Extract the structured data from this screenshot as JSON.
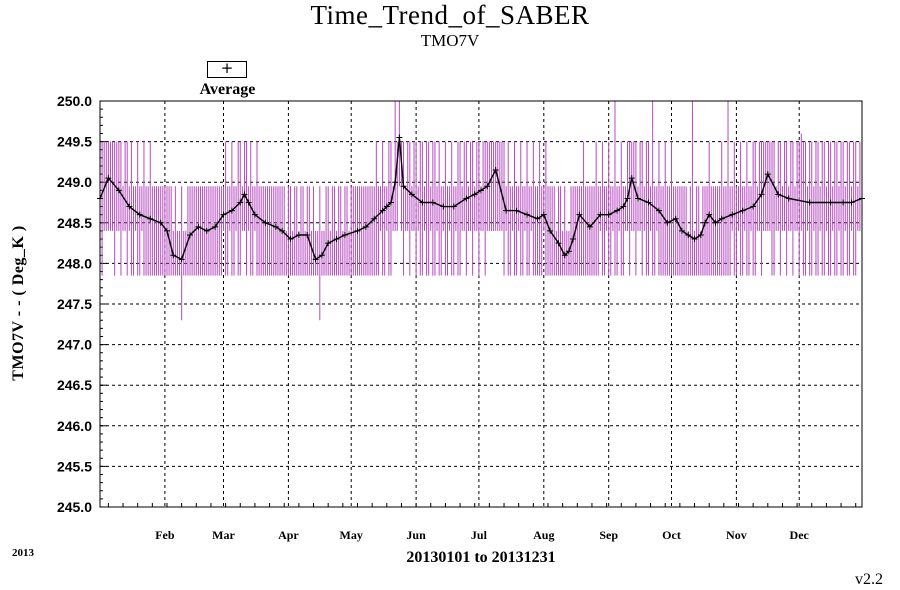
{
  "chart_data": {
    "type": "line",
    "title": "Time_Trend_of_SABER",
    "subtitle": "TMO7V",
    "xlabel": "20130101 to 20131231",
    "ylabel": "TMO7V  - - ( Deg_K )",
    "year_label": "2013",
    "version": "v2.2",
    "legend": {
      "marker": "+",
      "label": "Average",
      "placement": "top-left"
    },
    "ylim": [
      245.0,
      250.0
    ],
    "xlim": [
      1,
      365
    ],
    "yticks": [
      "245.0",
      "245.5",
      "246.0",
      "246.5",
      "247.0",
      "247.5",
      "248.0",
      "248.5",
      "249.0",
      "249.5",
      "250.0"
    ],
    "month_ticks": [
      {
        "label": "Feb",
        "day": 32
      },
      {
        "label": "Mar",
        "day": 60
      },
      {
        "label": "Apr",
        "day": 91
      },
      {
        "label": "May",
        "day": 121
      },
      {
        "label": "Jun",
        "day": 152
      },
      {
        "label": "Jul",
        "day": 182
      },
      {
        "label": "Aug",
        "day": 213
      },
      {
        "label": "Sep",
        "day": 244
      },
      {
        "label": "Oct",
        "day": 274
      },
      {
        "label": "Nov",
        "day": 305
      },
      {
        "label": "Dec",
        "day": 335
      }
    ],
    "grid": true,
    "colors": {
      "average": "#000000",
      "range": "#b64bc1"
    },
    "series": [
      {
        "name": "Average",
        "x": [
          1,
          5,
          10,
          15,
          20,
          25,
          30,
          33,
          36,
          40,
          44,
          48,
          52,
          56,
          60,
          64,
          68,
          70,
          72,
          75,
          80,
          85,
          88,
          92,
          96,
          100,
          104,
          107,
          110,
          114,
          118,
          124,
          128,
          132,
          136,
          138,
          140,
          142,
          144,
          146,
          150,
          155,
          160,
          165,
          170,
          176,
          180,
          183,
          186,
          190,
          195,
          200,
          205,
          210,
          213,
          216,
          220,
          223,
          225,
          227,
          230,
          235,
          240,
          244,
          248,
          251,
          253,
          255,
          258,
          263,
          268,
          272,
          276,
          279,
          282,
          285,
          288,
          290,
          292,
          295,
          298,
          303,
          308,
          313,
          317,
          320,
          325,
          330,
          340,
          350,
          356,
          360,
          365
        ],
        "y": [
          248.8,
          249.05,
          248.9,
          248.7,
          248.6,
          248.55,
          248.5,
          248.4,
          248.1,
          248.05,
          248.35,
          248.45,
          248.4,
          248.45,
          248.6,
          248.65,
          248.75,
          248.85,
          248.75,
          248.6,
          248.5,
          248.45,
          248.4,
          248.3,
          248.35,
          248.35,
          248.05,
          248.1,
          248.25,
          248.3,
          248.35,
          248.4,
          248.45,
          248.55,
          248.65,
          248.7,
          248.75,
          249.0,
          249.55,
          248.95,
          248.85,
          248.75,
          248.75,
          248.7,
          248.7,
          248.8,
          248.85,
          248.9,
          248.95,
          249.15,
          248.65,
          248.65,
          248.6,
          248.55,
          248.6,
          248.4,
          248.25,
          248.1,
          248.15,
          248.3,
          248.6,
          248.45,
          248.6,
          248.6,
          248.65,
          248.7,
          248.8,
          249.05,
          248.8,
          248.75,
          248.65,
          248.5,
          248.55,
          248.4,
          248.35,
          248.3,
          248.35,
          248.5,
          248.6,
          248.5,
          248.55,
          248.6,
          248.65,
          248.7,
          248.85,
          249.1,
          248.85,
          248.8,
          248.75,
          248.75,
          248.75,
          248.75,
          248.8
        ]
      }
    ]
  }
}
